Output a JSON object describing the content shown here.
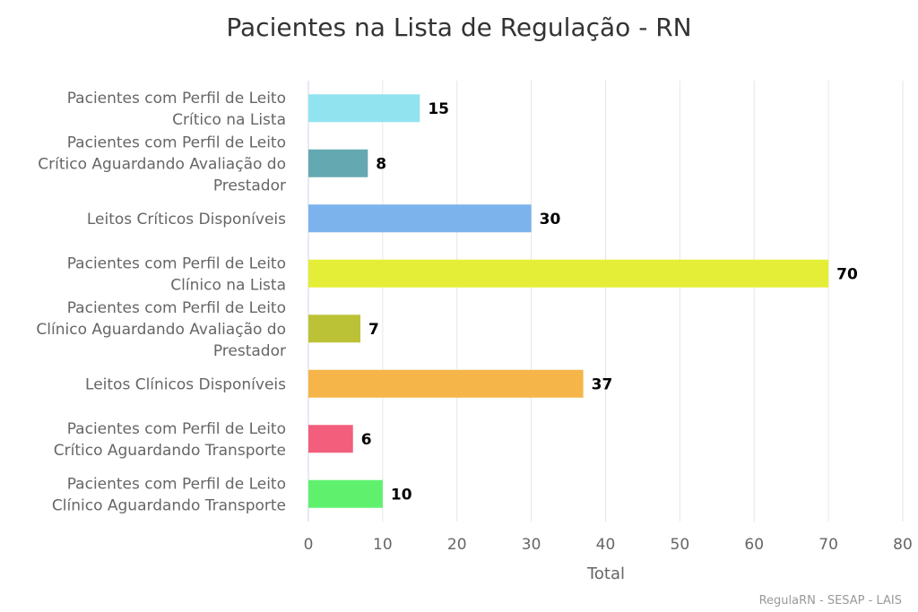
{
  "chart_data": {
    "type": "bar",
    "orientation": "horizontal",
    "title": "Pacientes na Lista de Regulação - RN",
    "xlabel": "Total",
    "ylabel": "",
    "xlim": [
      0,
      80
    ],
    "x_ticks": [
      0,
      10,
      20,
      30,
      40,
      50,
      60,
      70,
      80
    ],
    "grid": true,
    "legend": "none",
    "categories": [
      [
        "Pacientes com Perfil de Leito",
        "Crítico na Lista"
      ],
      [
        "Pacientes com Perfil de Leito",
        "Crítico Aguardando Avaliação do",
        "Prestador"
      ],
      [
        "Leitos Críticos Disponíveis"
      ],
      [
        "Pacientes com Perfil de Leito",
        "Clínico na Lista"
      ],
      [
        "Pacientes com Perfil de Leito",
        "Clínico Aguardando Avaliação do",
        "Prestador"
      ],
      [
        "Leitos Clínicos Disponíveis"
      ],
      [
        "Pacientes com Perfil de Leito",
        "Crítico Aguardando Transporte"
      ],
      [
        "Pacientes com Perfil de Leito",
        "Clínico Aguardando Transporte"
      ]
    ],
    "values": [
      15,
      8,
      30,
      70,
      7,
      37,
      6,
      10
    ],
    "colors": [
      "#91e3ef",
      "#64a8b1",
      "#7cb3ec",
      "#e5ee37",
      "#bcc236",
      "#f5b549",
      "#f25e7c",
      "#5ff16e"
    ],
    "credits": "RegulaRN - SESAP - LAIS"
  }
}
